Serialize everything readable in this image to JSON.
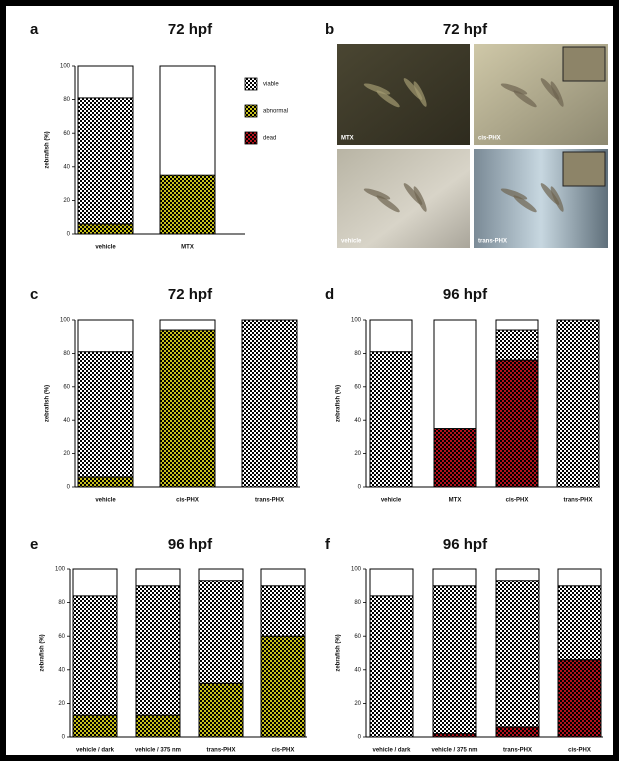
{
  "chart_data": [
    {
      "type": "bar",
      "stacked": true,
      "panel": "a",
      "title": "72 hpf",
      "ylabel": "zebrafish (%)",
      "categories": [
        "vehicle",
        "MTX"
      ],
      "series": [
        {
          "name": "viable",
          "color": "#ffffff",
          "values": [
            75,
            0
          ]
        },
        {
          "name": "abnormal",
          "color": "#c9c21c",
          "values": [
            6,
            35
          ]
        },
        {
          "name": "dead",
          "color": "#b3121c",
          "values": [
            0,
            0
          ]
        }
      ],
      "ylim": [
        0,
        100
      ],
      "yticks": [
        0,
        20,
        40,
        60,
        80,
        100
      ],
      "legend": "right"
    },
    {
      "type": "bar",
      "stacked": true,
      "panel": "c",
      "title": "72 hpf",
      "ylabel": "zebrafish (%)",
      "categories": [
        "vehicle",
        "cis-PHX",
        "trans-PHX"
      ],
      "series": [
        {
          "name": "viable",
          "color": "#ffffff",
          "values": [
            75,
            0,
            100
          ]
        },
        {
          "name": "abnormal",
          "color": "#c9c21c",
          "values": [
            6,
            94,
            0
          ]
        }
      ],
      "ylim": [
        0,
        100
      ],
      "yticks": [
        0,
        20,
        40,
        60,
        80,
        100
      ]
    },
    {
      "type": "bar",
      "stacked": true,
      "panel": "d",
      "title": "96 hpf",
      "ylabel": "zebrafish (%)",
      "categories": [
        "vehicle",
        "MTX",
        "cis-PHX",
        "trans-PHX"
      ],
      "series": [
        {
          "name": "viable",
          "color": "#ffffff",
          "values": [
            81,
            0,
            18,
            100
          ]
        },
        {
          "name": "dead",
          "color": "#b3121c",
          "values": [
            0,
            35,
            76,
            0
          ]
        }
      ],
      "ylim": [
        0,
        100
      ],
      "yticks": [
        0,
        20,
        40,
        60,
        80,
        100
      ]
    },
    {
      "type": "bar",
      "stacked": true,
      "panel": "e",
      "title": "96 hpf",
      "ylabel": "zebrafish (%)",
      "categories": [
        "vehicle / dark",
        "vehicle / 375 nm",
        "trans-PHX",
        "cis-PHX"
      ],
      "series": [
        {
          "name": "viable",
          "color": "#ffffff",
          "values": [
            71,
            77,
            61,
            30
          ]
        },
        {
          "name": "abnormal",
          "color": "#c9c21c",
          "values": [
            13,
            13,
            32,
            60
          ]
        }
      ],
      "ylim": [
        0,
        100
      ],
      "yticks": [
        0,
        20,
        40,
        60,
        80,
        100
      ]
    },
    {
      "type": "bar",
      "stacked": true,
      "panel": "f",
      "title": "96 hpf",
      "ylabel": "zebrafish (%)",
      "categories": [
        "vehicle / dark",
        "vehicle / 375 nm",
        "trans-PHX",
        "cis-PHX"
      ],
      "series": [
        {
          "name": "viable",
          "color": "#ffffff",
          "values": [
            84,
            88,
            87,
            44
          ]
        },
        {
          "name": "dead",
          "color": "#b3121c",
          "values": [
            0,
            2,
            6,
            46
          ]
        }
      ],
      "ylim": [
        0,
        100
      ],
      "yticks": [
        0,
        20,
        40,
        60,
        80,
        100
      ]
    }
  ],
  "figure_b": {
    "panel": "b",
    "title": "72 hpf",
    "images": [
      {
        "label": "MTX"
      },
      {
        "label": "cis-PHX"
      },
      {
        "label": "vehicle"
      },
      {
        "label": "trans-PHX"
      }
    ]
  }
}
